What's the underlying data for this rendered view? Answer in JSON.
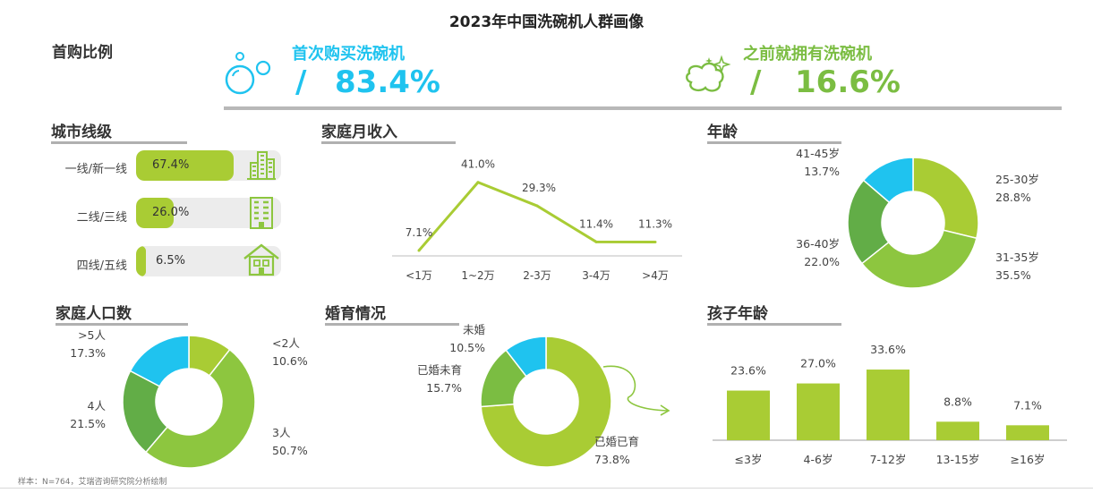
{
  "title": "2023年中国洗碗机人群画像",
  "first_purchase": {
    "section_title": "首购比例",
    "first_time": {
      "label": "首次购买洗碗机",
      "value": "83.4%",
      "slash": "/"
    },
    "previously": {
      "label": "之前就拥有洗碗机",
      "value": "16.6%",
      "slash": "/"
    }
  },
  "colors": {
    "cyan": "#1fc3ef",
    "green": "#7bbd42",
    "lime": "#a9cc34",
    "mid_green": "#8dc63f",
    "dark_green": "#62ad47",
    "gray_pill": "#ececec"
  },
  "city": {
    "section_title": "城市线级",
    "rows": [
      {
        "label": "一线/新一线",
        "value": "67.4%",
        "pct": 67.4,
        "icon": "skyscraper-icon"
      },
      {
        "label": "二线/三线",
        "value": "26.0%",
        "pct": 26.0,
        "icon": "building-icon"
      },
      {
        "label": "四线/五线",
        "value": "6.5%",
        "pct": 6.5,
        "icon": "house-icon"
      }
    ]
  },
  "chart_data": [
    {
      "id": "income",
      "type": "line",
      "title": "家庭月收入",
      "categories": [
        "<1万",
        "1~2万",
        "2-3万",
        "3-4万",
        ">4万"
      ],
      "values": [
        7.1,
        41.0,
        29.3,
        11.4,
        11.3
      ],
      "labels": [
        "7.1%",
        "41.0%",
        "29.3%",
        "11.4%",
        "11.3%"
      ],
      "color": "#a9cc34"
    },
    {
      "id": "age",
      "type": "pie",
      "title": "年龄",
      "slices": [
        {
          "name": "25-30岁",
          "value": 28.8,
          "label": "28.8%",
          "color": "#a9cc34"
        },
        {
          "name": "31-35岁",
          "value": 35.5,
          "label": "35.5%",
          "color": "#8dc63f"
        },
        {
          "name": "36-40岁",
          "value": 22.0,
          "label": "22.0%",
          "color": "#62ad47"
        },
        {
          "name": "41-45岁",
          "value": 13.7,
          "label": "13.7%",
          "color": "#1fc3ef"
        }
      ]
    },
    {
      "id": "household",
      "type": "pie",
      "title": "家庭人口数",
      "slices": [
        {
          "name": "<2人",
          "value": 10.6,
          "label": "10.6%",
          "color": "#a9cc34"
        },
        {
          "name": "3人",
          "value": 50.7,
          "label": "50.7%",
          "color": "#8dc63f"
        },
        {
          "name": "4人",
          "value": 21.5,
          "label": "21.5%",
          "color": "#62ad47"
        },
        {
          "name": ">5人",
          "value": 17.3,
          "label": "17.3%",
          "color": "#1fc3ef"
        }
      ]
    },
    {
      "id": "marital",
      "type": "pie",
      "title": "婚育情况",
      "slices": [
        {
          "name": "已婚已育",
          "value": 73.8,
          "label": "73.8%",
          "color": "#a9cc34"
        },
        {
          "name": "已婚未育",
          "value": 15.7,
          "label": "15.7%",
          "color": "#7bbd42"
        },
        {
          "name": "未婚",
          "value": 10.5,
          "label": "10.5%",
          "color": "#1fc3ef"
        }
      ]
    },
    {
      "id": "child_age",
      "type": "bar",
      "title": "孩子年龄",
      "categories": [
        "≤3岁",
        "4-6岁",
        "7-12岁",
        "13-15岁",
        "≥16岁"
      ],
      "values": [
        23.6,
        27.0,
        33.6,
        8.8,
        7.1
      ],
      "labels": [
        "23.6%",
        "27.0%",
        "33.6%",
        "8.8%",
        "7.1%"
      ],
      "color": "#a9cc34"
    }
  ],
  "footer": "样本：N=764，艾瑞咨询研究院分析绘制"
}
